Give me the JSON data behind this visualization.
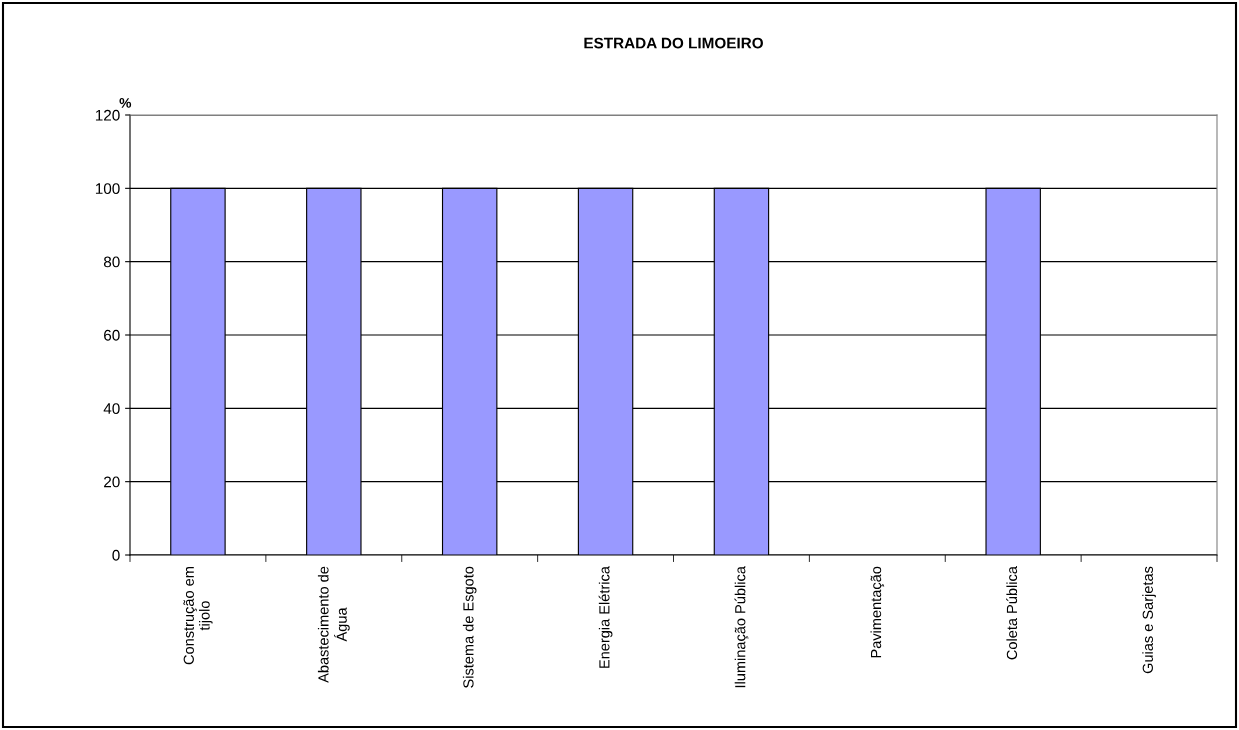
{
  "chart_data": {
    "type": "bar",
    "title": "ESTRADA DO LIMOEIRO",
    "ylabel": "%",
    "categories": [
      "Construção em\ntijolo",
      "Abastecimento de\nÁgua",
      "Sistema de Esgoto",
      "Energia Elétrica",
      "Iluminação Pública",
      "Pavimentação",
      "Coleta Pública",
      "Guias e Sarjetas"
    ],
    "values": [
      100,
      100,
      100,
      100,
      100,
      0,
      100,
      0
    ],
    "color": "#9999ff",
    "ylim": [
      0,
      120
    ],
    "yticks": [
      0,
      20,
      40,
      60,
      80,
      100,
      120
    ],
    "grid": "y",
    "legend": false
  }
}
